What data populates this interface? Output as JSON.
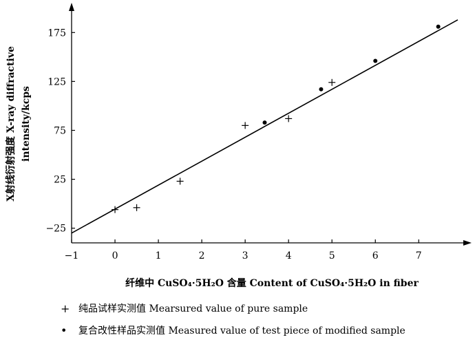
{
  "chart_data": {
    "type": "scatter",
    "xlabel": "纤维中 CuSO₄·5H₂O 含量 Content of CuSO₄·5H₂O in fiber",
    "ylabel_line1": "X射线衍射强度 X-ray diffractive",
    "ylabel_line2": "intensity/kcps",
    "xlim": [
      -1,
      7.9
    ],
    "ylim": [
      -40,
      197
    ],
    "x_ticks": [
      -1,
      0,
      1,
      2,
      3,
      4,
      5,
      6,
      7
    ],
    "y_ticks": [
      -25,
      25,
      75,
      125,
      175
    ],
    "grid": false,
    "series": [
      {
        "name": "纯品试样实测值 Mearsured value of pure sample",
        "marker": "plus",
        "x": [
          0,
          0.5,
          1.5,
          3.0,
          4.0,
          5.0
        ],
        "y": [
          -6,
          -4,
          23,
          80,
          87,
          124
        ]
      },
      {
        "name": "复合改性样品实测值 Measured value of test piece of modified sample",
        "marker": "dot",
        "x": [
          3.45,
          4.75,
          6.0,
          7.45
        ],
        "y": [
          83,
          117,
          146,
          181
        ]
      }
    ],
    "fit_line": {
      "x": [
        -1,
        7.9
      ],
      "y": [
        -30,
        188
      ]
    }
  },
  "legend": {
    "plus_symbol": "+",
    "dot_symbol": "•",
    "item1": "纯品试样实测值 Mearsured value of pure sample",
    "item2": "复合改性样品实测值 Measured value of test piece of modified sample"
  }
}
